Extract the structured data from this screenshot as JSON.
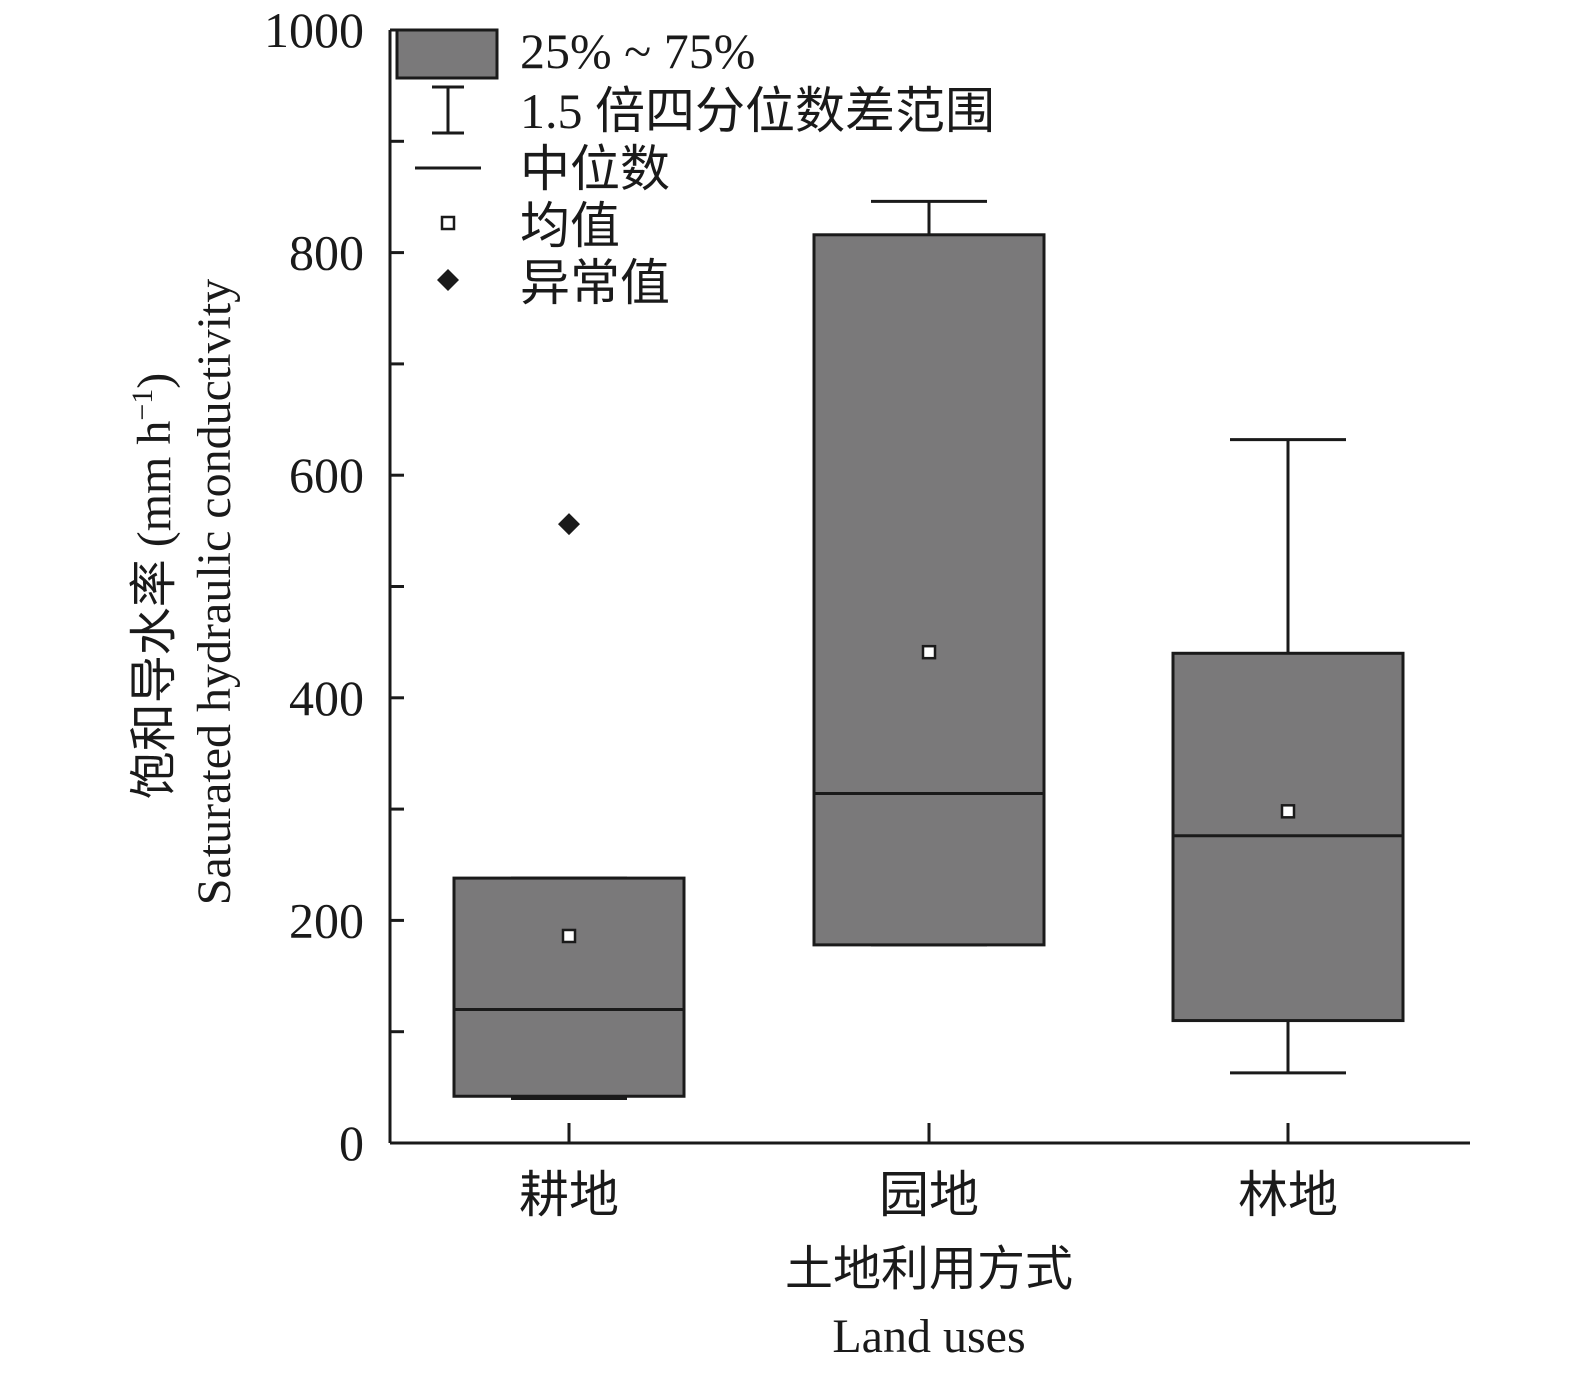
{
  "chart_data": {
    "type": "box",
    "categories": [
      "耕地",
      "园地",
      "林地"
    ],
    "boxes": [
      {
        "category": "耕地",
        "whisker_low": 40,
        "q1": 42,
        "median": 120,
        "q3": 238,
        "whisker_high": 238,
        "mean": 186,
        "outliers": [
          556
        ]
      },
      {
        "category": "园地",
        "whisker_low": 178,
        "q1": 178,
        "median": 314,
        "q3": 816,
        "whisker_high": 846,
        "mean": 441,
        "outliers": []
      },
      {
        "category": "林地",
        "whisker_low": 63,
        "q1": 110,
        "median": 276,
        "q3": 440,
        "whisker_high": 632,
        "mean": 298,
        "outliers": []
      }
    ],
    "ylim": [
      0,
      1000
    ],
    "yticks": [
      "0",
      "200",
      "400",
      "600",
      "800",
      "1000"
    ],
    "ylabel_cn": "饱和导水率 (mm h",
    "ylabel_sup": "−1",
    "ylabel_close": ")",
    "ylabel_en": "Saturated hydraulic conductivity",
    "xlabel_cn": "土地利用方式",
    "xlabel_en": "Land uses",
    "legend": {
      "placement": "top-left",
      "items": [
        "25% ~ 75%",
        "1.5 倍四分位数差范围",
        "中位数",
        "均值",
        "异常值"
      ]
    },
    "colors": {
      "box_fill": "#7a797a",
      "line": "#1a1a1a",
      "background": "#ffffff"
    }
  }
}
